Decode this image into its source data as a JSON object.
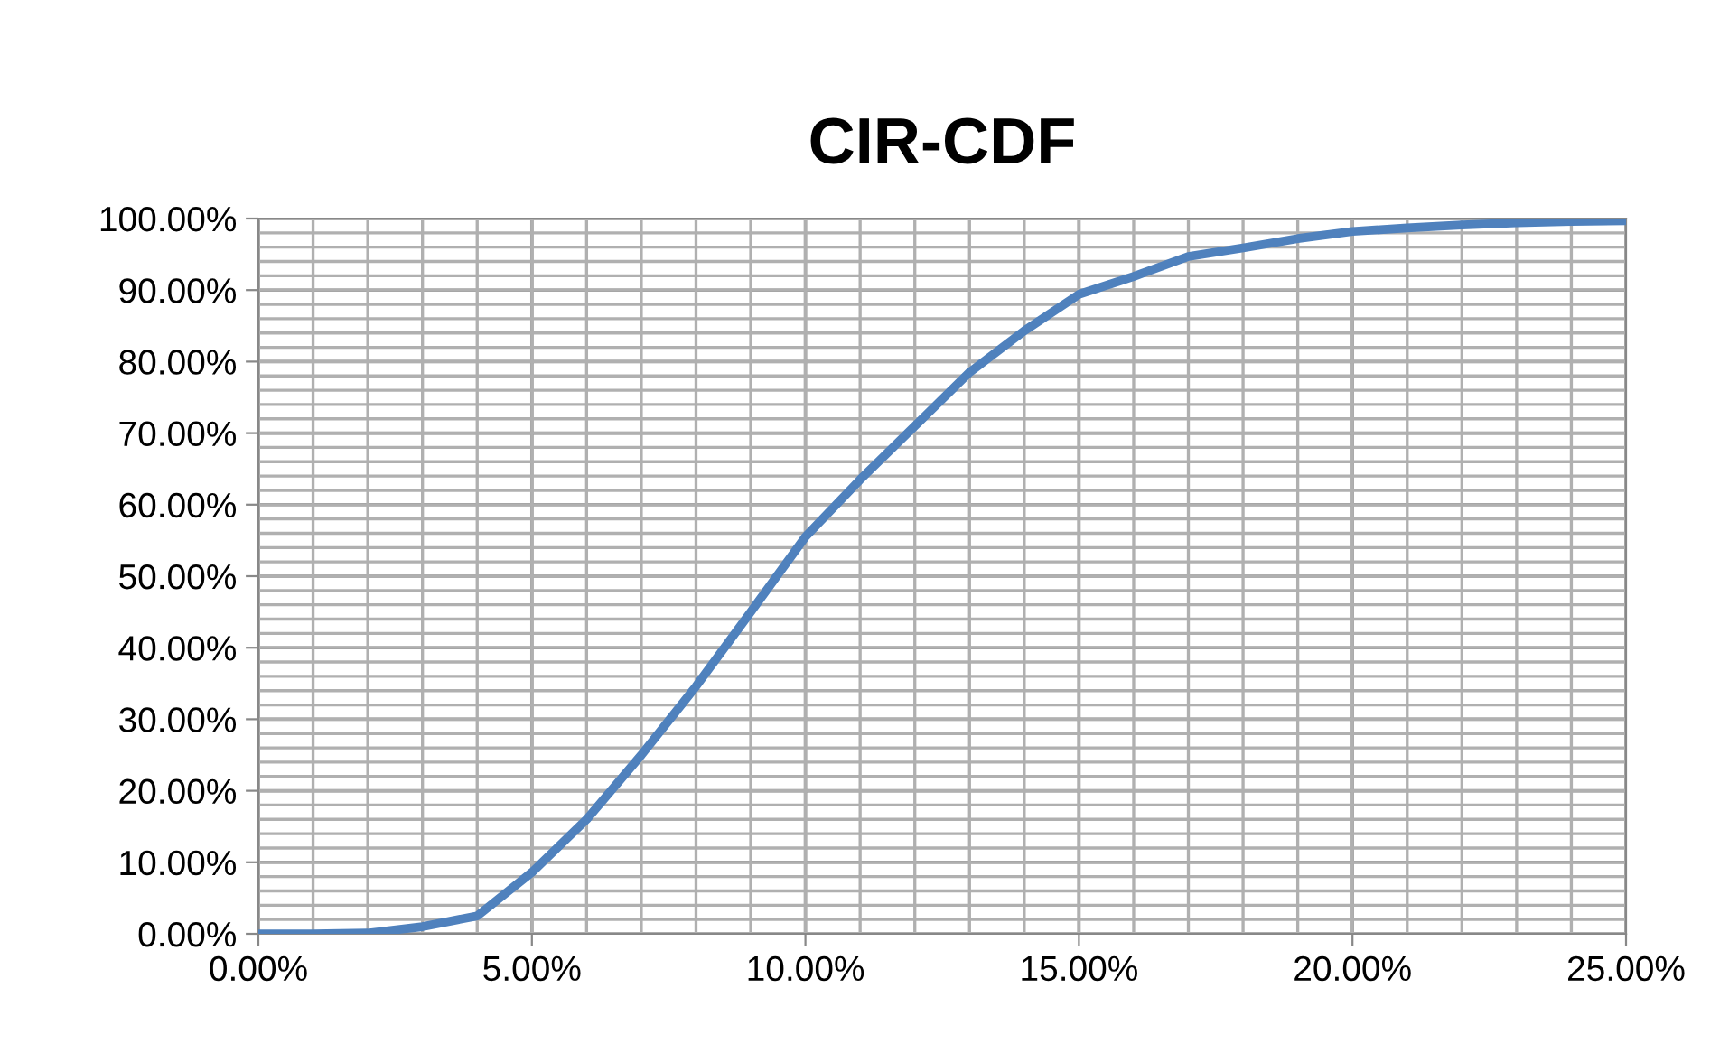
{
  "chart_data": {
    "type": "line",
    "title": "CIR-CDF",
    "x": [
      0,
      1,
      2,
      3,
      4,
      5,
      6,
      7,
      8,
      9,
      10,
      11,
      12,
      13,
      14,
      15,
      16,
      17,
      18,
      19,
      20,
      21,
      22,
      23,
      24,
      25
    ],
    "series": [
      {
        "color": "#4f81bd",
        "values": [
          0,
          0,
          0.1,
          1,
          2.5,
          8.6,
          16,
          25,
          34.6,
          45,
          55.5,
          63.5,
          71,
          78.5,
          84.3,
          89.4,
          91.9,
          94.7,
          95.9,
          97.2,
          98.2,
          98.7,
          99.1,
          99.4,
          99.6,
          99.7
        ]
      }
    ],
    "xlim": [
      0,
      25
    ],
    "ylim": [
      0,
      100
    ],
    "xticks": [
      {
        "value": 0,
        "label": "0.00%"
      },
      {
        "value": 5,
        "label": "5.00%"
      },
      {
        "value": 10,
        "label": "10.00%"
      },
      {
        "value": 15,
        "label": "15.00%"
      },
      {
        "value": 20,
        "label": "20.00%"
      },
      {
        "value": 25,
        "label": "25.00%"
      }
    ],
    "yticks": [
      {
        "value": 0,
        "label": "0.00%"
      },
      {
        "value": 10,
        "label": "10.00%"
      },
      {
        "value": 20,
        "label": "20.00%"
      },
      {
        "value": 30,
        "label": "30.00%"
      },
      {
        "value": 40,
        "label": "40.00%"
      },
      {
        "value": 50,
        "label": "50.00%"
      },
      {
        "value": 60,
        "label": "60.00%"
      },
      {
        "value": 70,
        "label": "70.00%"
      },
      {
        "value": 80,
        "label": "80.00%"
      },
      {
        "value": 90,
        "label": "90.00%"
      },
      {
        "value": 100,
        "label": "100.00%"
      }
    ],
    "grid": true,
    "legend": false,
    "marker": "none",
    "line_style": "solid"
  }
}
